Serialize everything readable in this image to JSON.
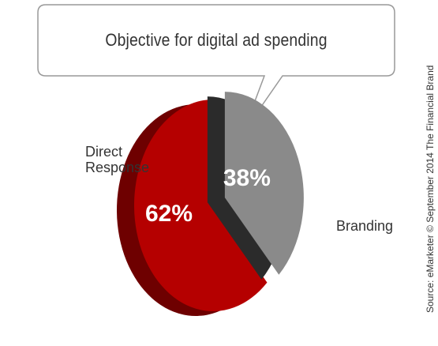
{
  "callout": {
    "title": "Objective for digital ad spending"
  },
  "source": "Source: eMarketer © September 2014 The Financial Brand",
  "colors": {
    "direct_response": "#b50000",
    "direct_response_side": "#6e0000",
    "branding": "#8a8a8a",
    "branding_side": "#2b2b2b",
    "callout_border": "#999999"
  },
  "chart_data": {
    "type": "pie",
    "title": "Objective for digital ad spending",
    "slices": [
      {
        "label": "Direct Response",
        "label_lines": [
          "Direct",
          "Response"
        ],
        "value": 62,
        "value_label": "62%"
      },
      {
        "label": "Branding",
        "label_lines": [
          "Branding"
        ],
        "value": 38,
        "value_label": "38%"
      }
    ]
  }
}
